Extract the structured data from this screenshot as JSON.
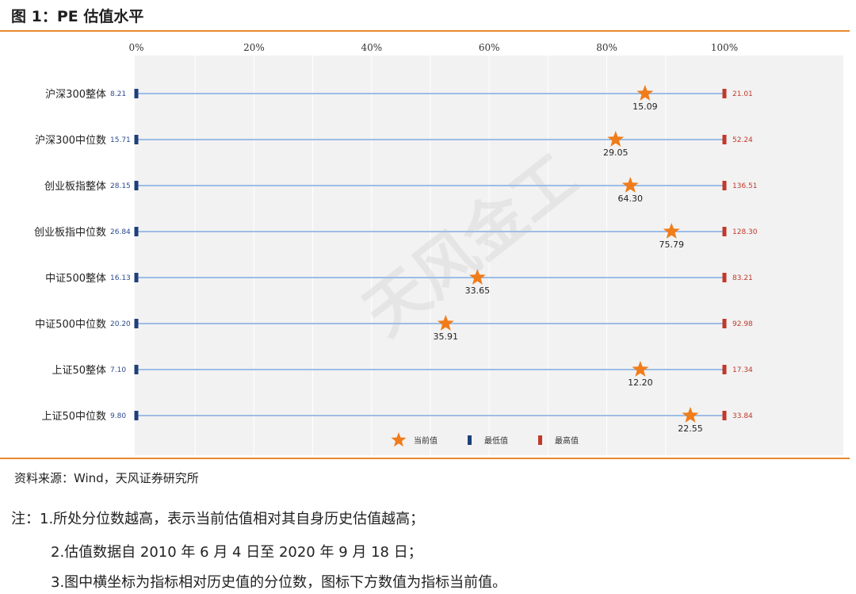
{
  "header": {
    "title": "图 1：PE 估值水平"
  },
  "watermark": "天风金工",
  "chart_data": {
    "type": "scatter",
    "x_axis": {
      "min": 0,
      "max": 100,
      "ticks": [
        "0%",
        "20%",
        "40%",
        "60%",
        "80%",
        "100%"
      ],
      "tick_values": [
        0,
        20,
        40,
        60,
        80,
        100
      ]
    },
    "grid": true,
    "legend_position": "bottom",
    "legend": [
      "当前值",
      "最低值",
      "最高值"
    ],
    "colors": {
      "current": "#f07c1a",
      "min": "#1f3f7a",
      "max": "#c0392b",
      "line": "#9dbde6"
    },
    "rows": [
      {
        "label": "沪深300整体",
        "min": "8.21",
        "max": "21.01",
        "current": "15.09",
        "percentile": 86.5
      },
      {
        "label": "沪深300中位数",
        "min": "15.71",
        "max": "52.24",
        "current": "29.05",
        "percentile": 81.5
      },
      {
        "label": "创业板指整体",
        "min": "28.15",
        "max": "136.51",
        "current": "64.30",
        "percentile": 84
      },
      {
        "label": "创业板指中位数",
        "min": "26.84",
        "max": "128.30",
        "current": "75.79",
        "percentile": 91
      },
      {
        "label": "中证500整体",
        "min": "16.13",
        "max": "83.21",
        "current": "33.65",
        "percentile": 58
      },
      {
        "label": "中证500中位数",
        "min": "20.20",
        "max": "92.98",
        "current": "35.91",
        "percentile": 52.6
      },
      {
        "label": "上证50整体",
        "min": "7.10",
        "max": "17.34",
        "current": "12.20",
        "percentile": 85.7
      },
      {
        "label": "上证50中位数",
        "min": "9.80",
        "max": "33.84",
        "current": "22.55",
        "percentile": 94.2
      }
    ]
  },
  "source": "资料来源：Wind，天风证券研究所",
  "notes": {
    "line1": "注：1.所处分位数越高，表示当前估值相对其自身历史估值越高；",
    "line2": "2.估值数据自 2010 年 6 月 4 日至 2020 年 9 月 18 日；",
    "line3": "3.图中横坐标为指标相对历史值的分位数，图标下方数值为指标当前值。"
  }
}
